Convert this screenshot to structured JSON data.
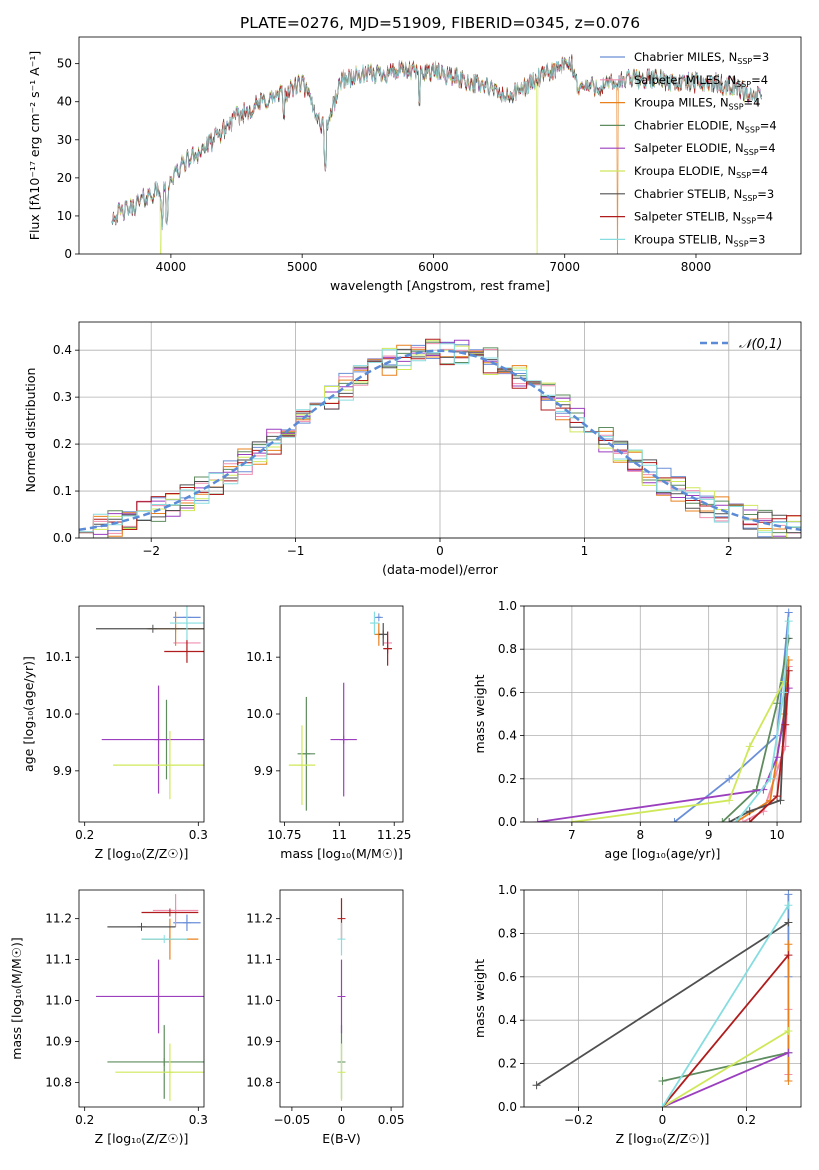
{
  "figure_title": "PLATE=0276, MJD=51909, FIBERID=0345, z=0.076",
  "series": [
    {
      "label": "Chabrier MILES, N",
      "nssp": "3",
      "color": "#6a8fd8"
    },
    {
      "label": "Salpeter MILES, N",
      "nssp": "4",
      "color": "#f08fb0"
    },
    {
      "label": "Kroupa MILES, N",
      "nssp": "4",
      "color": "#e8801e"
    },
    {
      "label": "Chabrier ELODIE, N",
      "nssp": "4",
      "color": "#5e8c5e"
    },
    {
      "label": "Salpeter ELODIE, N",
      "nssp": "4",
      "color": "#9b3fbf"
    },
    {
      "label": "Kroupa ELODIE, N",
      "nssp": "4",
      "color": "#cfe85a"
    },
    {
      "label": "Chabrier STELIB, N",
      "nssp": "3",
      "color": "#505050"
    },
    {
      "label": "Salpeter STELIB, N",
      "nssp": "4",
      "color": "#b01c1c"
    },
    {
      "label": "Kroupa STELIB, N",
      "nssp": "3",
      "color": "#86dde0"
    }
  ],
  "chart_data": [
    {
      "type": "line",
      "xlabel": "wavelength [Angstrom, rest frame]",
      "ylabel": "Flux [fλ10⁻¹⁷ erg cm⁻² s⁻¹ A⁻¹]",
      "xlim": [
        3300,
        8800
      ],
      "ylim": [
        0,
        57
      ],
      "xticks": [
        4000,
        5000,
        6000,
        7000,
        8000
      ],
      "yticks": [
        0,
        10,
        20,
        30,
        40,
        50
      ],
      "legend": "top-right",
      "spectrum_anchors": {
        "x": [
          3550,
          3700,
          3850,
          3950,
          4100,
          4300,
          4500,
          4700,
          4860,
          5000,
          5175,
          5300,
          5500,
          5700,
          5900,
          6000,
          6200,
          6400,
          6563,
          6700,
          6900,
          7050,
          7100,
          7300,
          7500,
          7700,
          7900,
          8100,
          8300,
          8400,
          8500
        ],
        "y": [
          10,
          12,
          16,
          17,
          24,
          29,
          36,
          40,
          42,
          45,
          32,
          46,
          47,
          48,
          48,
          48,
          46,
          44,
          41,
          44,
          48,
          50,
          44,
          44,
          46,
          46,
          45,
          45,
          44,
          42,
          41
        ]
      },
      "dropouts": [
        {
          "series": 5,
          "x": 3920
        },
        {
          "series": 5,
          "x": 6790
        },
        {
          "series": 2,
          "x": 7400
        }
      ]
    },
    {
      "type": "histogram",
      "xlabel": "(data-model)/error",
      "ylabel": "Normed distribution",
      "xlim": [
        -2.5,
        2.5
      ],
      "ylim": [
        0,
        0.46
      ],
      "xticks": [
        -2,
        -1,
        0,
        1,
        2
      ],
      "yticks": [
        0.0,
        0.1,
        0.2,
        0.3,
        0.4
      ],
      "bin_width": 0.1,
      "reference_curve": "𝒩(0,1)",
      "grid": true
    },
    {
      "type": "scatter_errorbar",
      "xlabel": "Z [log₁₀(Z/Z☉)]",
      "ylabel": "age  [log₁₀(age/yr)]",
      "xlim": [
        0.195,
        0.305
      ],
      "ylim": [
        9.81,
        10.19
      ],
      "xticks": [
        0.2,
        0.3
      ],
      "yticks": [
        9.9,
        10.0,
        10.1
      ],
      "points": [
        {
          "s": 0,
          "x": 0.29,
          "xe": 0.012,
          "y": 10.17,
          "ye": 0.0
        },
        {
          "s": 1,
          "x": 0.29,
          "xe": 0.012,
          "y": 10.125,
          "ye": 0.0
        },
        {
          "s": 2,
          "x": 0.28,
          "xe": 0.025,
          "y": 10.15,
          "ye": 0.03
        },
        {
          "s": 3,
          "x": 0.272,
          "xe": 0.0,
          "y": 9.955,
          "ye": 0.07
        },
        {
          "s": 4,
          "x": 0.265,
          "xe": 0.05,
          "y": 9.955,
          "ye": 0.095
        },
        {
          "s": 5,
          "x": 0.275,
          "xe": 0.05,
          "y": 9.91,
          "ye": 0.06
        },
        {
          "s": 6,
          "x": 0.26,
          "xe": 0.05,
          "y": 10.15,
          "ye": 0.0
        },
        {
          "s": 7,
          "x": 0.29,
          "xe": 0.02,
          "y": 10.11,
          "ye": 0.02
        },
        {
          "s": 8,
          "x": 0.29,
          "xe": 0.015,
          "y": 10.16,
          "ye": 0.03
        }
      ]
    },
    {
      "type": "scatter_errorbar",
      "xlabel": "mass [log₁₀(M/M☉)]",
      "xlim": [
        10.73,
        11.29
      ],
      "ylim": [
        9.81,
        10.19
      ],
      "xticks": [
        10.75,
        11.0,
        11.25
      ],
      "yticks": [
        9.9,
        10.0,
        10.1
      ],
      "points": [
        {
          "s": 0,
          "x": 11.18,
          "xe": 0.01,
          "y": 10.17,
          "ye": 0.0
        },
        {
          "s": 1,
          "x": 11.22,
          "xe": 0.02,
          "y": 10.125,
          "ye": 0.02
        },
        {
          "s": 2,
          "x": 11.18,
          "xe": 0.02,
          "y": 10.14,
          "ye": 0.02
        },
        {
          "s": 3,
          "x": 10.85,
          "xe": 0.04,
          "y": 9.93,
          "ye": 0.1
        },
        {
          "s": 4,
          "x": 11.02,
          "xe": 0.06,
          "y": 9.955,
          "ye": 0.1
        },
        {
          "s": 5,
          "x": 10.83,
          "xe": 0.06,
          "y": 9.91,
          "ye": 0.07
        },
        {
          "s": 6,
          "x": 11.2,
          "xe": 0.02,
          "y": 10.14,
          "ye": 0.02
        },
        {
          "s": 7,
          "x": 11.22,
          "xe": 0.02,
          "y": 10.115,
          "ye": 0.03
        },
        {
          "s": 8,
          "x": 11.16,
          "xe": 0.02,
          "y": 10.16,
          "ye": 0.02
        }
      ]
    },
    {
      "type": "line",
      "xlabel": "age  [log₁₀(age/yr)]",
      "ylabel": "mass weight",
      "xlim": [
        6.3,
        10.35
      ],
      "ylim": [
        0,
        1.0
      ],
      "xticks": [
        7,
        8,
        9,
        10
      ],
      "yticks": [
        0.0,
        0.2,
        0.4,
        0.6,
        0.8,
        1.0
      ],
      "grid": true,
      "lines": [
        {
          "s": 0,
          "x": [
            8.5,
            9.3,
            10.0,
            10.17
          ],
          "y": [
            0.0,
            0.2,
            0.4,
            0.97
          ]
        },
        {
          "s": 1,
          "x": [
            9.5,
            9.8,
            10.12,
            10.17
          ],
          "y": [
            0.0,
            0.05,
            0.35,
            0.72
          ]
        },
        {
          "s": 2,
          "x": [
            9.4,
            9.9,
            10.1,
            10.17
          ],
          "y": [
            0.0,
            0.1,
            0.5,
            0.75
          ]
        },
        {
          "s": 3,
          "x": [
            9.2,
            9.7,
            10.0,
            10.17
          ],
          "y": [
            0.0,
            0.15,
            0.55,
            0.85
          ]
        },
        {
          "s": 4,
          "x": [
            6.5,
            9.8,
            10.0,
            10.17
          ],
          "y": [
            0.0,
            0.15,
            0.3,
            0.62
          ]
        },
        {
          "s": 5,
          "x": [
            7.0,
            9.3,
            9.6,
            10.1
          ],
          "y": [
            0.0,
            0.1,
            0.35,
            0.65
          ]
        },
        {
          "s": 6,
          "x": [
            9.3,
            9.6,
            10.05,
            10.15
          ],
          "y": [
            0.0,
            0.05,
            0.1,
            0.85
          ]
        },
        {
          "s": 7,
          "x": [
            9.6,
            10.0,
            10.12,
            10.17
          ],
          "y": [
            0.0,
            0.12,
            0.45,
            0.7
          ]
        },
        {
          "s": 8,
          "x": [
            9.4,
            9.9,
            10.1,
            10.17
          ],
          "y": [
            0.0,
            0.2,
            0.6,
            0.93
          ]
        }
      ]
    },
    {
      "type": "scatter_errorbar",
      "xlabel": "Z [log₁₀(Z/Z☉)]",
      "ylabel": "mass [log₁₀(M/M☉)]",
      "xlim": [
        0.195,
        0.305
      ],
      "ylim": [
        10.74,
        11.27
      ],
      "xticks": [
        0.2,
        0.3
      ],
      "yticks": [
        10.8,
        10.9,
        11.0,
        11.1,
        11.2
      ],
      "points": [
        {
          "s": 0,
          "x": 0.29,
          "xe": 0.012,
          "y": 11.19,
          "ye": 0.02
        },
        {
          "s": 1,
          "x": 0.28,
          "xe": 0.02,
          "y": 11.22,
          "ye": 0.04
        },
        {
          "s": 2,
          "x": 0.275,
          "xe": 0.025,
          "y": 11.15,
          "ye": 0.05
        },
        {
          "s": 3,
          "x": 0.27,
          "xe": 0.05,
          "y": 10.85,
          "ye": 0.09
        },
        {
          "s": 4,
          "x": 0.265,
          "xe": 0.055,
          "y": 11.01,
          "ye": 0.09
        },
        {
          "s": 5,
          "x": 0.275,
          "xe": 0.048,
          "y": 10.825,
          "ye": 0.07
        },
        {
          "s": 6,
          "x": 0.25,
          "xe": 0.03,
          "y": 11.18,
          "ye": 0.0
        },
        {
          "s": 7,
          "x": 0.275,
          "xe": 0.025,
          "y": 11.215,
          "ye": 0.0
        },
        {
          "s": 8,
          "x": 0.27,
          "xe": 0.02,
          "y": 11.15,
          "ye": 0.0
        }
      ]
    },
    {
      "type": "scatter_errorbar",
      "xlabel": "E(B-V)",
      "xlim": [
        -0.062,
        0.062
      ],
      "ylim": [
        10.74,
        11.27
      ],
      "xticks": [
        -0.05,
        0.0,
        0.05
      ],
      "yticks": [
        10.8,
        10.9,
        11.0,
        11.1,
        11.2
      ],
      "points": [
        {
          "s": 3,
          "x": 0.0,
          "xe": 0.0,
          "y": 10.85,
          "ye": 0.09
        },
        {
          "s": 4,
          "x": 0.0,
          "xe": 0.0,
          "y": 11.01,
          "ye": 0.09
        },
        {
          "s": 5,
          "x": 0.0,
          "xe": 0.0,
          "y": 10.825,
          "ye": 0.07
        },
        {
          "s": 7,
          "x": 0.0,
          "xe": 0.0,
          "y": 11.2,
          "ye": 0.05
        },
        {
          "s": 8,
          "x": 0.0,
          "xe": 0.0,
          "y": 11.15,
          "ye": 0.04
        }
      ]
    },
    {
      "type": "line",
      "xlabel": "Z [log₁₀(Z/Z☉)]",
      "ylabel": "mass weight",
      "xlim": [
        -0.33,
        0.33
      ],
      "ylim": [
        0,
        1.0
      ],
      "xticks": [
        -0.2,
        0.0,
        0.2
      ],
      "yticks": [
        0.0,
        0.2,
        0.4,
        0.6,
        0.8,
        1.0
      ],
      "grid": true,
      "lines": [
        {
          "s": 0,
          "x": [
            0.3,
            0.3
          ],
          "y": [
            0.6,
            0.98
          ]
        },
        {
          "s": 1,
          "x": [
            0.3,
            0.3
          ],
          "y": [
            0.15,
            0.45
          ]
        },
        {
          "s": 2,
          "x": [
            0.3,
            0.3
          ],
          "y": [
            0.12,
            0.75
          ]
        },
        {
          "s": 3,
          "x": [
            0.0,
            0.3
          ],
          "y": [
            0.12,
            0.25
          ]
        },
        {
          "s": 4,
          "x": [
            0.0,
            0.3
          ],
          "y": [
            0.0,
            0.25
          ]
        },
        {
          "s": 5,
          "x": [
            0.0,
            0.3
          ],
          "y": [
            0.0,
            0.35
          ]
        },
        {
          "s": 6,
          "x": [
            -0.3,
            0.3
          ],
          "y": [
            0.1,
            0.85
          ]
        },
        {
          "s": 7,
          "x": [
            0.0,
            0.3
          ],
          "y": [
            0.0,
            0.7
          ]
        },
        {
          "s": 8,
          "x": [
            0.0,
            0.3
          ],
          "y": [
            0.0,
            0.93
          ]
        }
      ]
    }
  ]
}
